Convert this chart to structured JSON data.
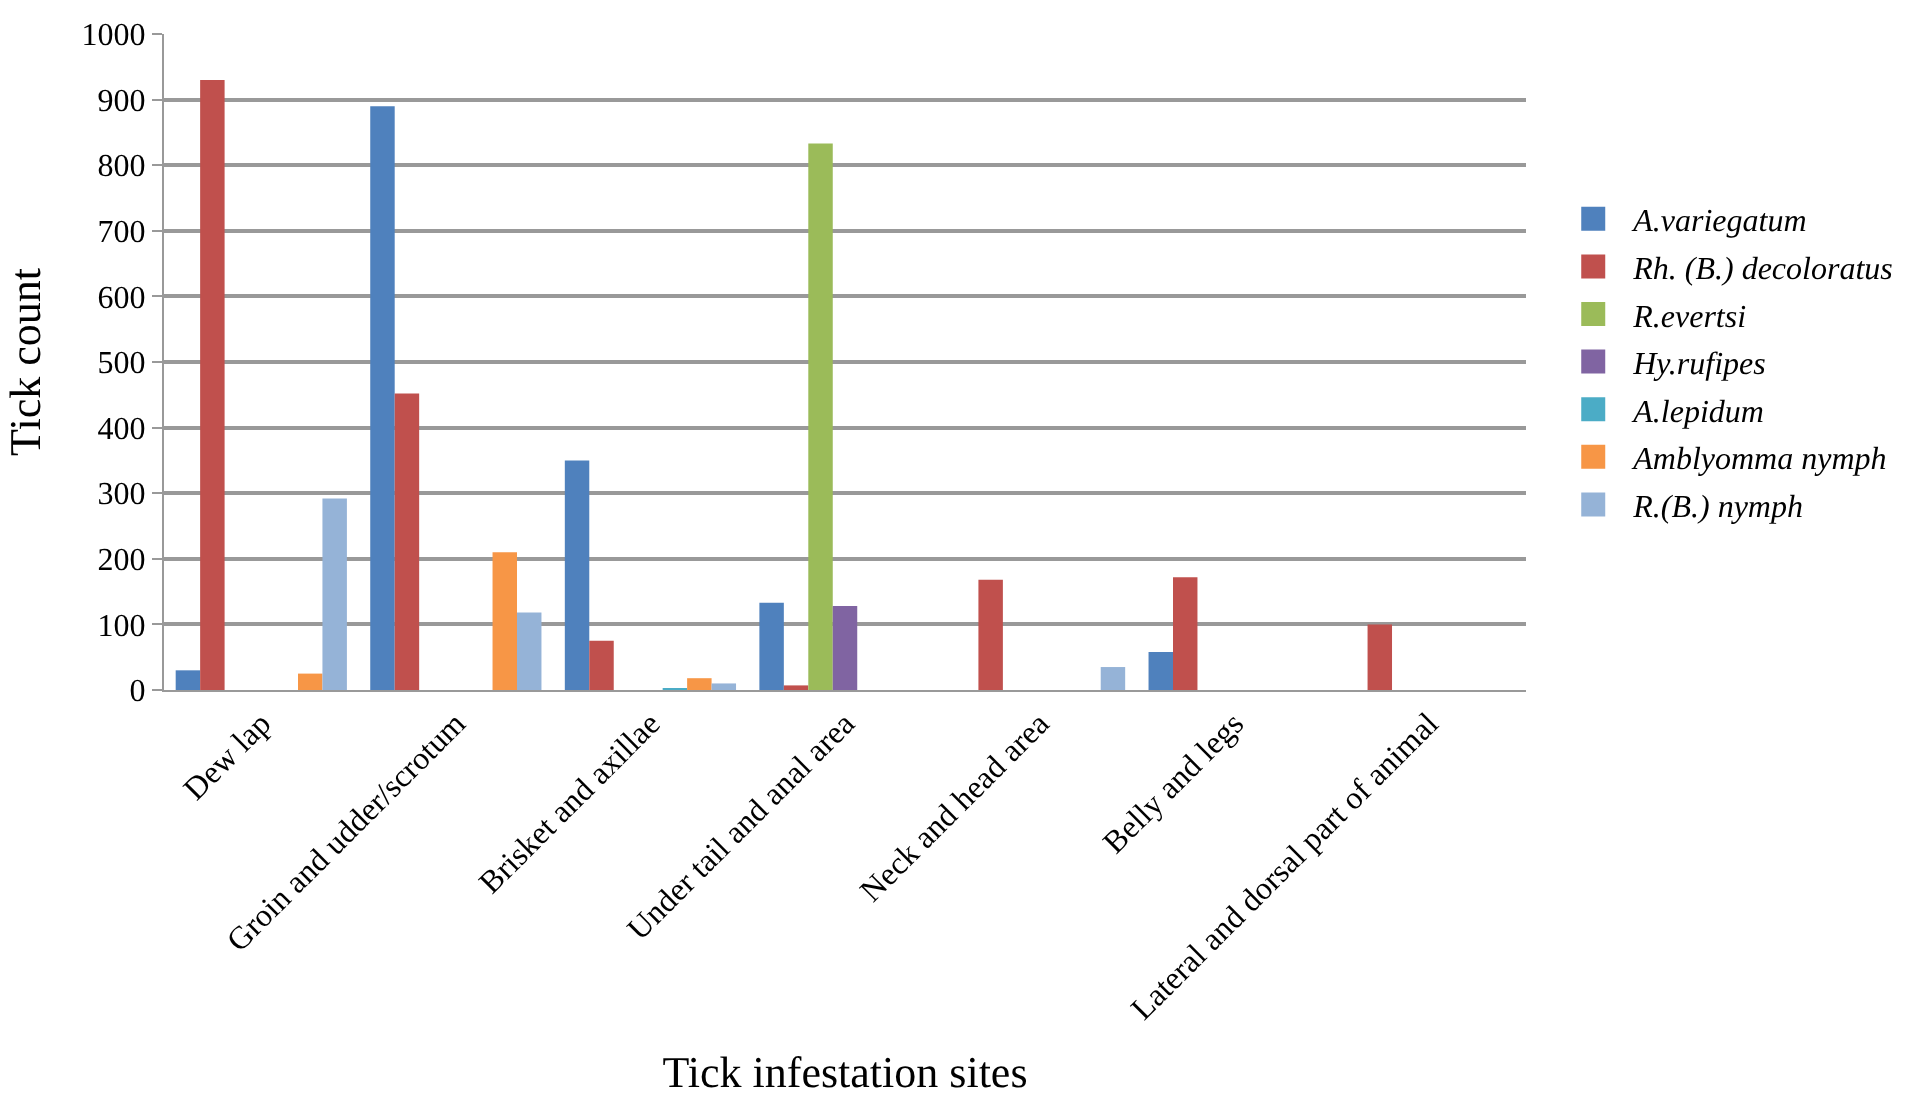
{
  "chart_data": {
    "type": "bar",
    "xlabel": "Tick infestation sites",
    "ylabel": "Tick count",
    "categories": [
      "Dew lap",
      "Groin and udder/scrotum",
      "Brisket and axillae",
      "Under tail and anal area",
      "Neck and head area",
      "Belly and legs",
      "Lateral and dorsal part of animal"
    ],
    "series": [
      {
        "name": "A.variegatum",
        "color": "#4f81bd",
        "values": [
          30,
          890,
          350,
          133,
          0,
          58,
          0
        ]
      },
      {
        "name": "Rh. (B.) decoloratus",
        "color": "#c0504d",
        "values": [
          930,
          452,
          75,
          7,
          168,
          172,
          100
        ]
      },
      {
        "name": "R.evertsi",
        "color": "#9bbb59",
        "values": [
          0,
          0,
          0,
          833,
          0,
          0,
          0
        ]
      },
      {
        "name": "Hy.rufipes",
        "color": "#8064a2",
        "values": [
          0,
          0,
          0,
          128,
          0,
          0,
          0
        ]
      },
      {
        "name": "A.lepidum",
        "color": "#4bacc6",
        "values": [
          0,
          0,
          3,
          0,
          0,
          0,
          0
        ]
      },
      {
        "name": "Amblyomma nymph",
        "color": "#f79646",
        "values": [
          25,
          210,
          18,
          0,
          0,
          0,
          0
        ]
      },
      {
        "name": "R.(B.) nymph",
        "color": "#95b3d7",
        "values": [
          292,
          118,
          10,
          0,
          35,
          0,
          0
        ]
      }
    ],
    "ylim": [
      0,
      1000
    ],
    "yticks": [
      0,
      100,
      200,
      300,
      400,
      500,
      600,
      700,
      800,
      900,
      1000
    ],
    "grid": "y",
    "legend": "right"
  }
}
